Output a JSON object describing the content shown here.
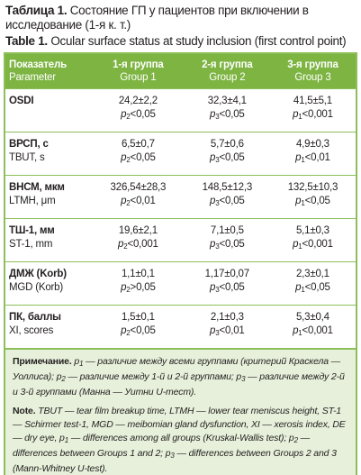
{
  "caption": {
    "ru": {
      "label": "Таблица 1.",
      "text": " Состояние ГП у пациентов при включении в исследование (1-я к. т.)"
    },
    "en": {
      "label": "Table 1.",
      "text": " Ocular surface status at study inclusion (first control point)"
    }
  },
  "table": {
    "header": [
      [
        "Показатель",
        "Parameter"
      ],
      [
        "1-я группа",
        "Group 1"
      ],
      [
        "2-я группа",
        "Group 2"
      ],
      [
        "3-я группа",
        "Group 3"
      ]
    ],
    "rows": [
      {
        "ru": "OSDI",
        "cells": [
          {
            "value": "24,2±2,2",
            "sym": "p",
            "sub": "2",
            "rel": "<0,05"
          },
          {
            "value": "32,3±4,1",
            "sym": "p",
            "sub": "3",
            "rel": "<0,05"
          },
          {
            "value": "41,5±5,1",
            "sym": "p",
            "sub": "1",
            "rel": "<0,001"
          }
        ]
      },
      {
        "ru": "ВРСП, с",
        "en": "TBUT, s",
        "cells": [
          {
            "value": "6,5±0,7",
            "sym": "p",
            "sub": "2",
            "rel": "<0,05"
          },
          {
            "value": "5,7±0,6",
            "sym": "p",
            "sub": "3",
            "rel": "<0,05"
          },
          {
            "value": "4,9±0,3",
            "sym": "p",
            "sub": "1",
            "rel": "<0,01"
          }
        ]
      },
      {
        "ru": "ВНСМ, мкм",
        "en": "LTMH, μm",
        "cells": [
          {
            "value": "326,54±28,3",
            "sym": "p",
            "sub": "2",
            "rel": "<0,01"
          },
          {
            "value": "148,5±12,3",
            "sym": "p",
            "sub": "3",
            "rel": "<0,05"
          },
          {
            "value": "132,5±10,3",
            "sym": "p",
            "sub": "1",
            "rel": "<0,05"
          }
        ]
      },
      {
        "ru": "ТШ-1, мм",
        "en": "ST-1, mm",
        "cells": [
          {
            "value": "19,6±2,1",
            "sym": "p",
            "sub": "2",
            "rel": "<0,001"
          },
          {
            "value": "7,1±0,5",
            "sym": "p",
            "sub": "3",
            "rel": "<0,05"
          },
          {
            "value": "5,1±0,3",
            "sym": "p",
            "sub": "1",
            "rel": "<0,001"
          }
        ]
      },
      {
        "ru": "ДМЖ (Korb)",
        "en": "MGD (Korb)",
        "cells": [
          {
            "value": "1,1±0,1",
            "sym": "p",
            "sub": "2",
            "rel": ">0,05"
          },
          {
            "value": "1,17±0,07",
            "sym": "p",
            "sub": "3",
            "rel": "<0,05"
          },
          {
            "value": "2,3±0,1",
            "sym": "p",
            "sub": "1",
            "rel": "<0,05"
          }
        ]
      },
      {
        "ru": "ПК, баллы",
        "en": "XI, scores",
        "cells": [
          {
            "value": "1,5±0,1",
            "sym": "p",
            "sub": "2",
            "rel": "<0,05"
          },
          {
            "value": "2,1±0,3",
            "sym": "p",
            "sub": "3",
            "rel": "<0,01"
          },
          {
            "value": "5,3±0,4",
            "sym": "p",
            "sub": "1",
            "rel": "<0,001"
          }
        ]
      }
    ]
  },
  "notes": {
    "ru": {
      "label": "Примечание.",
      "parts": [
        {
          "text": " "
        },
        {
          "sym": "p",
          "sub": "1",
          "text": " — различие между всеми группами (критерий Краскела — Уоллиса); "
        },
        {
          "sym": "p",
          "sub": "2",
          "text": " — различие между 1-й и 2-й группами; "
        },
        {
          "sym": "p",
          "sub": "3",
          "text": " — различие между 2-й и 3-й группами (Манна — Уитни U-тест)."
        }
      ]
    },
    "en": {
      "label": "Note.",
      "parts": [
        {
          "text": " TBUT — tear film breakup time, LTMH — lower tear meniscus height, ST-1 — Schirmer test-1, MGD — meibomian gland dysfunction, XI — xerosis index, DE — dry eye, "
        },
        {
          "sym": "p",
          "sub": "1",
          "text": " — differences among all groups (Kruskal-Wallis test); "
        },
        {
          "sym": "p",
          "sub": "2",
          "text": " — differences between Groups 1 and 2; "
        },
        {
          "sym": "p",
          "sub": "3",
          "text": " — differences between Groups 2 and 3 (Mann-Whitney U-test)."
        }
      ]
    }
  }
}
